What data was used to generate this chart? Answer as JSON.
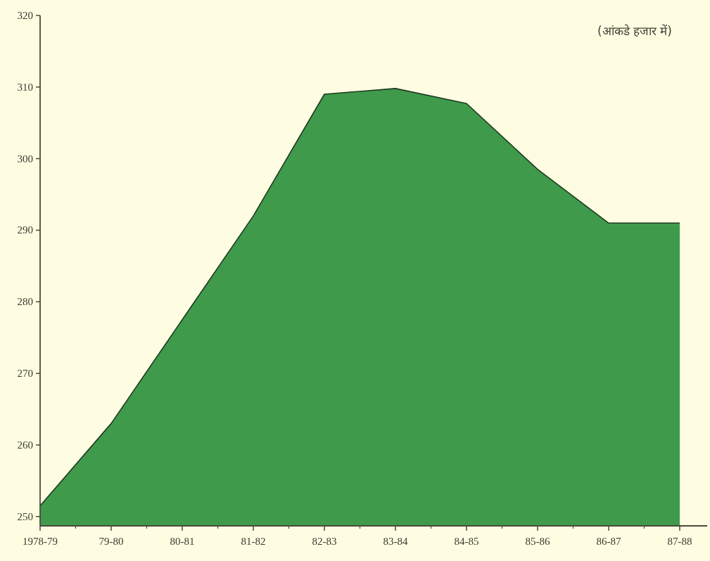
{
  "chart_data": {
    "type": "area",
    "annotations": [
      "(आंकडे हजार में)"
    ],
    "categories": [
      "1978-79",
      "79-80",
      "80-81",
      "81-82",
      "82-83",
      "83-84",
      "84-85",
      "85-86",
      "86-87",
      "87-88"
    ],
    "values": [
      251.5,
      263,
      277.5,
      292,
      309,
      309.8,
      307.7,
      298.5,
      291,
      291
    ],
    "color": "#3f9a4b",
    "ylim": [
      248.7,
      320
    ],
    "yticks": [
      250,
      260,
      270,
      280,
      290,
      300,
      310,
      320
    ]
  }
}
